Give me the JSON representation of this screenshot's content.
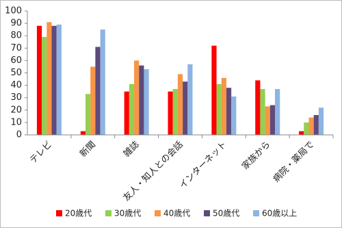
{
  "chart_data": {
    "type": "bar",
    "categories": [
      "テレビ",
      "新聞",
      "雑誌",
      "友人・知人との会話",
      "インターネット",
      "家族から",
      "病院・薬局で"
    ],
    "series": [
      {
        "name": "20歳代",
        "color": "#ff0000",
        "values": [
          88,
          3,
          35,
          35,
          72,
          44,
          3
        ]
      },
      {
        "name": "30歳代",
        "color": "#92d050",
        "values": [
          79,
          33,
          41,
          37,
          41,
          37,
          10
        ]
      },
      {
        "name": "40歳代",
        "color": "#f79646",
        "values": [
          91,
          55,
          60,
          49,
          46,
          23,
          14
        ]
      },
      {
        "name": "50歳代",
        "color": "#604a7b",
        "values": [
          88,
          71,
          56,
          43,
          38,
          24,
          16
        ]
      },
      {
        "name": "60歳以上",
        "color": "#8db4e2",
        "values": [
          89,
          85,
          53,
          57,
          31,
          37,
          22
        ]
      }
    ],
    "ylim": [
      0,
      100
    ],
    "yticks": [
      0,
      10,
      20,
      30,
      40,
      50,
      60,
      70,
      80,
      90,
      100
    ],
    "grid": false
  }
}
